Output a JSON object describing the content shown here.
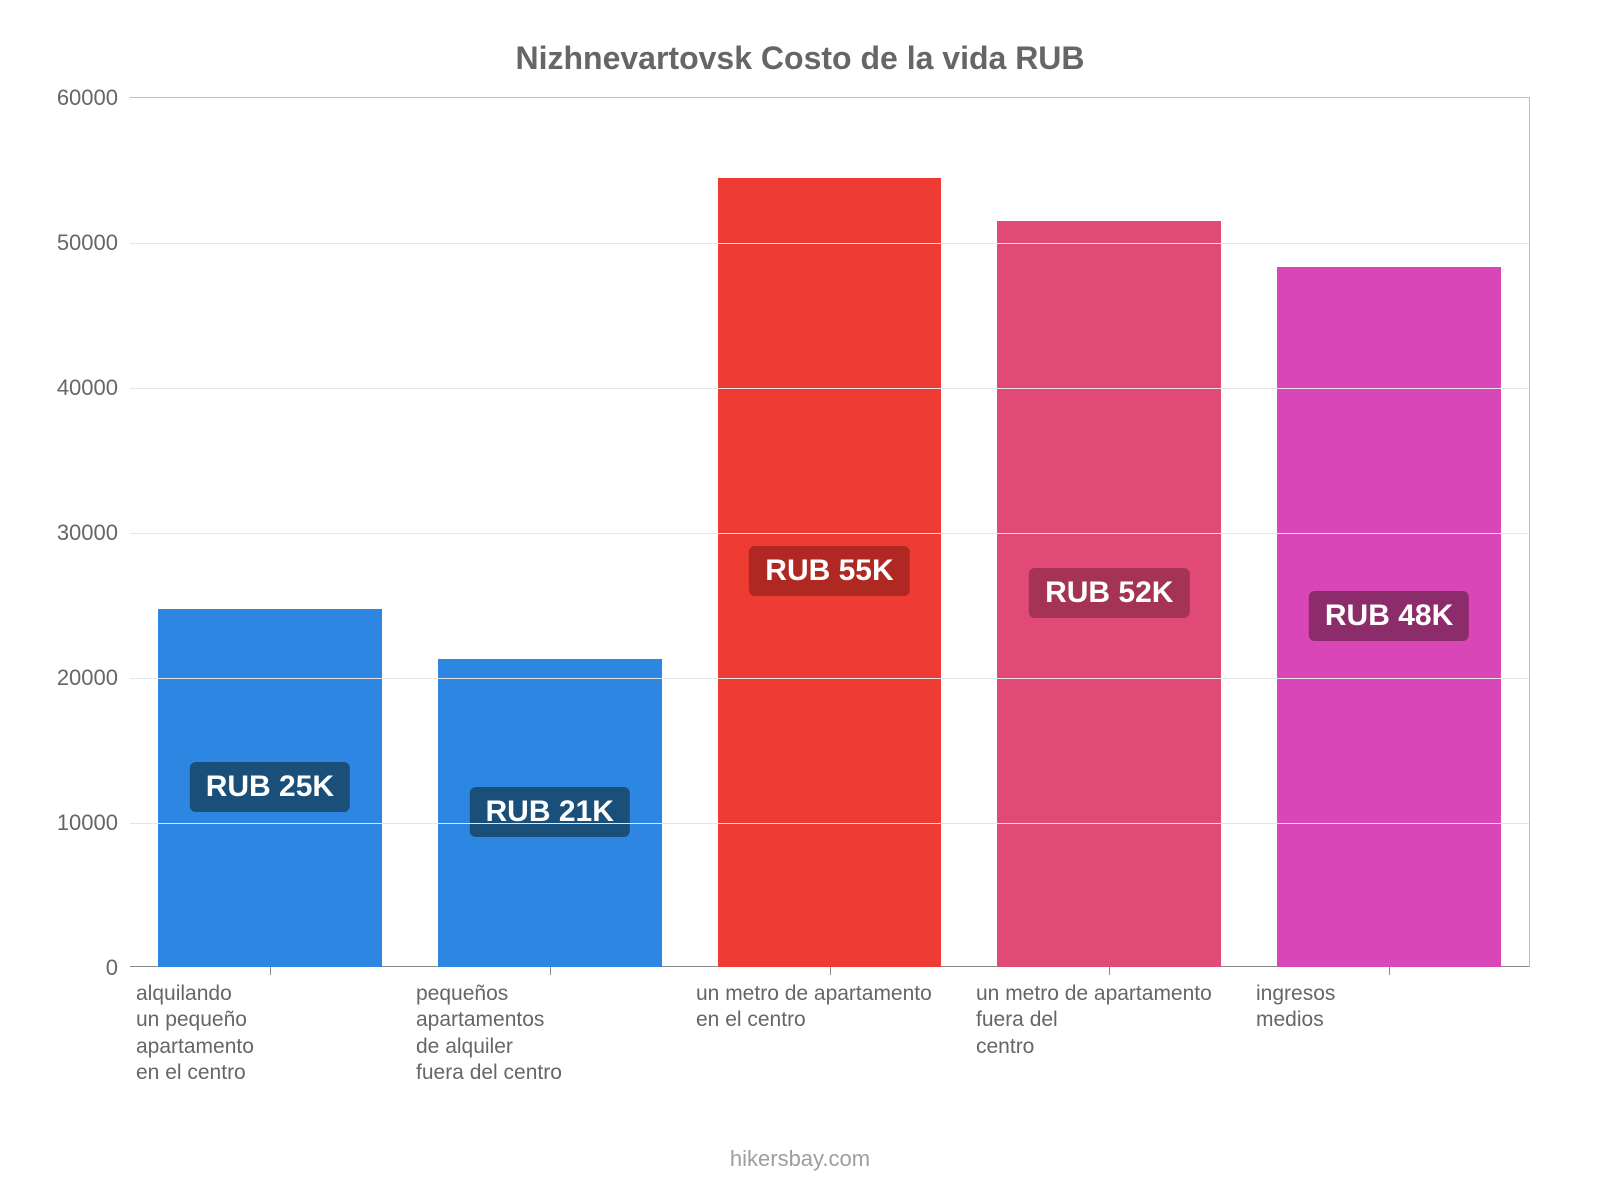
{
  "chart": {
    "type": "bar",
    "title": "Nizhnevartovsk Costo de la vida RUB",
    "title_color": "#666666",
    "title_fontsize": 32,
    "background_color": "#ffffff",
    "grid_color": "#e5e5e5",
    "axis_color": "#8a8a8a",
    "label_color": "#666666",
    "label_fontsize": 22,
    "xlabel_fontsize": 21,
    "ylim": [
      0,
      60000
    ],
    "ytick_step": 10000,
    "yticks": [
      0,
      10000,
      20000,
      30000,
      40000,
      50000,
      60000
    ],
    "bar_width_pct": 80,
    "badge_fontsize": 30,
    "badge_text_color": "#ffffff",
    "categories": [
      {
        "label_lines": [
          "alquilando",
          "un pequeño",
          "apartamento",
          "en el centro"
        ],
        "value": 24700,
        "value_label": "RUB 25K",
        "bar_color": "#2d87e2",
        "badge_color": "#1a4f7a"
      },
      {
        "label_lines": [
          "pequeños",
          "apartamentos",
          "de alquiler",
          "fuera del centro"
        ],
        "value": 21300,
        "value_label": "RUB 21K",
        "bar_color": "#2d87e2",
        "badge_color": "#1a4f7a"
      },
      {
        "label_lines": [
          "un metro de apartamento",
          "en el centro"
        ],
        "value": 54500,
        "value_label": "RUB 55K",
        "bar_color": "#ee3b33",
        "badge_color": "#b02822"
      },
      {
        "label_lines": [
          "un metro de apartamento",
          "fuera del",
          "centro"
        ],
        "value": 51500,
        "value_label": "RUB 52K",
        "bar_color": "#e14a76",
        "badge_color": "#a43356"
      },
      {
        "label_lines": [
          "ingresos",
          "medios"
        ],
        "value": 48300,
        "value_label": "RUB 48K",
        "bar_color": "#d846b7",
        "badge_color": "#8d2c6a"
      }
    ],
    "attribution": "hikersbay.com",
    "attribution_color": "#9e9e9e"
  }
}
